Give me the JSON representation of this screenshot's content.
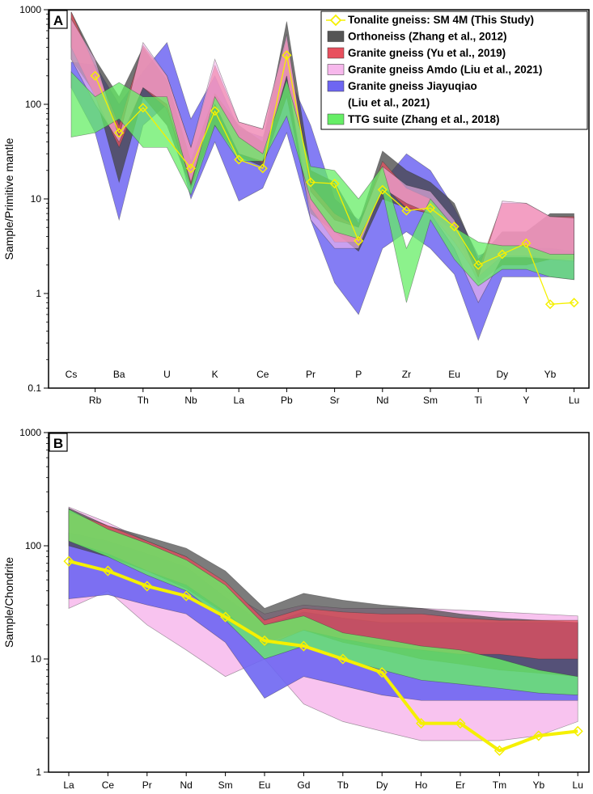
{
  "chart_data": [
    {
      "panel": "A",
      "type": "area",
      "scale": "log",
      "ylabel": "Sample/Primitive mantle",
      "ylim": [
        0.1,
        1000
      ],
      "yticks": [
        "0.1",
        "1",
        "10",
        "100",
        "1000"
      ],
      "categories": [
        "Cs",
        "Rb",
        "Ba",
        "Th",
        "U",
        "Nb",
        "K",
        "La",
        "Ce",
        "Pb",
        "Pr",
        "Sr",
        "P",
        "Nd",
        "Zr",
        "Sm",
        "Eu",
        "Ti",
        "Dy",
        "Y",
        "Yb",
        "Lu"
      ],
      "legend": [
        {
          "label": "Tonalite gneiss: SM 4M (This Study)",
          "color": "#f5f000",
          "kind": "line"
        },
        {
          "label": "Orthoneiss (Zhang et al., 2012)",
          "color": "#555555",
          "kind": "patch"
        },
        {
          "label": "Granite gneiss (Yu et al., 2019)",
          "color": "#e8505e",
          "kind": "patch"
        },
        {
          "label": "Granite gneiss Amdo (Liu et al., 2021)",
          "color": "#f7b8ec",
          "kind": "patch"
        },
        {
          "label": "Granite gneiss Jiayuqiao",
          "label2": "(Liu et al., 2021)",
          "color": "#6e66f2",
          "kind": "patch"
        },
        {
          "label": "TTG suite (Zhang et al., 2018)",
          "color": "#66ee66",
          "kind": "patch"
        }
      ],
      "series": [
        {
          "name": "Granite gneiss Jiayuqiao",
          "type": "band",
          "color": "#6e66f2",
          "opacity": 0.85,
          "upper": [
            280,
            260,
            100,
            220,
            450,
            70,
            200,
            55,
            45,
            220,
            60,
            10,
            6,
            15,
            30,
            20,
            8,
            2.5,
            3.2,
            3.0,
            3.0,
            2.8
          ],
          "lower": [
            150,
            50,
            6,
            60,
            100,
            10,
            40,
            9.5,
            13,
            50,
            6,
            1.3,
            0.6,
            3,
            4.5,
            3,
            1.6,
            0.32,
            1.5,
            1.5,
            1.5,
            1.4
          ]
        },
        {
          "name": "Orthoneiss",
          "type": "band",
          "color": "#444444",
          "opacity": 0.75,
          "upper": [
            950,
            300,
            120,
            400,
            180,
            25,
            130,
            60,
            40,
            750,
            20,
            15,
            5.5,
            32,
            20,
            15,
            9,
            2.3,
            4.5,
            4.5,
            7,
            7
          ],
          "lower": [
            300,
            130,
            15,
            120,
            60,
            13,
            60,
            28,
            22,
            120,
            7,
            4.5,
            2.8,
            10,
            8,
            7,
            4.5,
            1.3,
            2,
            2,
            2.3,
            2.3
          ]
        },
        {
          "name": "Granite gneiss Yu",
          "type": "band",
          "color": "#e8505e",
          "opacity": 0.75,
          "upper": [
            950,
            250,
            60,
            420,
            200,
            35,
            260,
            65,
            55,
            500,
            14,
            7,
            5,
            25,
            13,
            10,
            5,
            1.8,
            9,
            9,
            6.5,
            6.5
          ],
          "lower": [
            400,
            120,
            35,
            150,
            90,
            14,
            100,
            30,
            24,
            200,
            8,
            3.5,
            3.5,
            14,
            8,
            7,
            3.5,
            1.5,
            2.5,
            2.5,
            2.3,
            2.3
          ]
        },
        {
          "name": "Granite gneiss Amdo",
          "type": "band",
          "color": "#f7b8ec",
          "opacity": 0.6,
          "upper": [
            800,
            300,
            45,
            450,
            200,
            35,
            300,
            65,
            55,
            550,
            12,
            6,
            5,
            22,
            14,
            12,
            6,
            1.5,
            9.5,
            9,
            6.5,
            6.3
          ],
          "lower": [
            300,
            100,
            40,
            150,
            100,
            15,
            100,
            30,
            25,
            200,
            6,
            3,
            3,
            13,
            9,
            7,
            3,
            0.8,
            2.4,
            2.4,
            2.3,
            2.2
          ]
        },
        {
          "name": "TTG suite",
          "type": "band",
          "color": "#66ee66",
          "opacity": 0.75,
          "upper": [
            220,
            120,
            170,
            120,
            120,
            14,
            120,
            45,
            30,
            180,
            22,
            20,
            10,
            22,
            3,
            10,
            5,
            3.5,
            3.2,
            3.2,
            2.6,
            2.6
          ],
          "lower": [
            45,
            50,
            70,
            35,
            35,
            11,
            60,
            25,
            25,
            75,
            10,
            4.5,
            3.8,
            12,
            0.8,
            6,
            2.3,
            1.2,
            1.8,
            1.8,
            1.5,
            1.4
          ]
        },
        {
          "name": "Tonalite gneiss: SM 4M (This Study)",
          "type": "line",
          "color": "#f5f000",
          "values": [
            null,
            200,
            50,
            92,
            null,
            21,
            85,
            26,
            21,
            330,
            15,
            14.5,
            3.6,
            12.5,
            7.5,
            8,
            5.1,
            2.0,
            2.6,
            3.4,
            0.77,
            0.8
          ]
        }
      ]
    },
    {
      "panel": "B",
      "type": "area",
      "scale": "log",
      "ylabel": "Sample/Chondrite",
      "ylim": [
        1,
        1000
      ],
      "yticks": [
        "1",
        "10",
        "100",
        "1000"
      ],
      "categories": [
        "La",
        "Ce",
        "Pr",
        "Nd",
        "Sm",
        "Eu",
        "Gd",
        "Tb",
        "Dy",
        "Ho",
        "Er",
        "Tm",
        "Yb",
        "Lu"
      ],
      "series": [
        {
          "name": "Granite gneiss Amdo",
          "type": "band",
          "color": "#f7b8ec",
          "opacity": 0.85,
          "upper": [
            220,
            160,
            110,
            80,
            40,
            25,
            30,
            28,
            28,
            28,
            27,
            26,
            25,
            24
          ],
          "lower": [
            28,
            40,
            20,
            12,
            7,
            10,
            4,
            2.8,
            2.3,
            1.9,
            1.9,
            1.9,
            2.1,
            2.8
          ]
        },
        {
          "name": "Granite gneiss Jiayuqiao",
          "type": "band",
          "color": "#6e66f2",
          "opacity": 0.9,
          "upper": [
            130,
            110,
            85,
            65,
            35,
            20,
            26,
            23,
            21,
            21,
            21,
            21,
            21,
            21
          ],
          "lower": [
            34,
            37,
            30,
            25,
            14,
            4.5,
            7,
            5.8,
            4.8,
            4.3,
            4.3,
            4.3,
            4.3,
            4.3
          ]
        },
        {
          "name": "Orthoneiss",
          "type": "band",
          "color": "#444444",
          "opacity": 0.7,
          "upper": [
            215,
            150,
            120,
            95,
            60,
            28,
            38,
            33,
            30,
            28,
            25,
            23,
            22,
            21
          ],
          "lower": [
            100,
            80,
            60,
            42,
            25,
            14,
            18,
            14,
            12,
            10,
            9,
            8,
            7.5,
            7
          ]
        },
        {
          "name": "Granite gneiss Yu",
          "type": "band",
          "color": "#e8505e",
          "opacity": 0.75,
          "upper": [
            200,
            150,
            110,
            80,
            48,
            22,
            28,
            26,
            25,
            25,
            23,
            22,
            22,
            22
          ],
          "lower": [
            110,
            85,
            60,
            45,
            26,
            13,
            18,
            15,
            13,
            12,
            11,
            11,
            10,
            10
          ]
        },
        {
          "name": "TTG suite",
          "type": "band",
          "color": "#66ee66",
          "opacity": 0.8,
          "upper": [
            210,
            140,
            105,
            75,
            45,
            20,
            24,
            17,
            15,
            13,
            12,
            10,
            8,
            7
          ],
          "lower": [
            110,
            80,
            55,
            40,
            22,
            10,
            13,
            10,
            8,
            6.5,
            6,
            5.5,
            5,
            4.8
          ]
        },
        {
          "name": "Tonalite gneiss: SM 4M (This Study)",
          "type": "line",
          "color": "#f5f000",
          "values": [
            73,
            60,
            44,
            36,
            23.5,
            14.5,
            13,
            10,
            7.6,
            2.7,
            2.7,
            1.55,
            2.1,
            2.3
          ]
        }
      ]
    }
  ]
}
